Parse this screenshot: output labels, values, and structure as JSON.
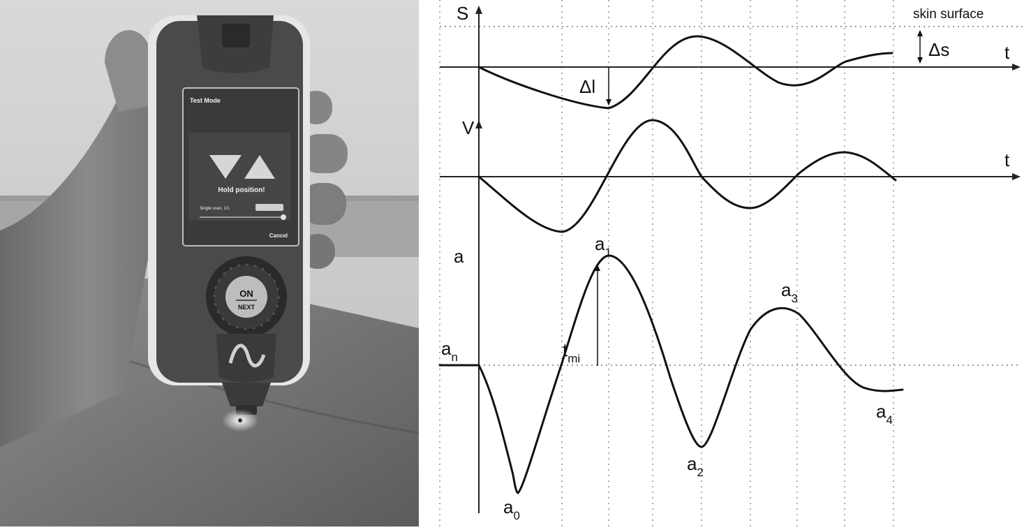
{
  "device": {
    "screen_title": "Test Mode",
    "status_text": "Hold position!",
    "mode_text": "Single scan, 1/1",
    "button_top": "ON",
    "button_bottom": "NEXT",
    "cancel_label": "Cancel",
    "colors": {
      "screen": "#3a3a3a",
      "body": "#4a4a4a",
      "frame": "#e6e6e6"
    }
  },
  "diagram": {
    "plot_s": {
      "axis_label": "S",
      "time_label": "t",
      "skin_surface_label": "skin surface",
      "delta_s_label": "Δs",
      "delta_l_label": "Δl"
    },
    "plot_v": {
      "axis_label": "V",
      "time_label": "t"
    },
    "plot_a": {
      "axis_label": "a",
      "an_main": "a",
      "an_sub": "n",
      "a0_main": "a",
      "a0_sub": "0",
      "a1_main": "a",
      "a1_sub": "1",
      "a2_main": "a",
      "a2_sub": "2",
      "a3_main": "a",
      "a3_sub": "3",
      "a4_main": "a",
      "a4_sub": "4",
      "tmi_main": "t",
      "tmi_sub": "mi"
    }
  }
}
